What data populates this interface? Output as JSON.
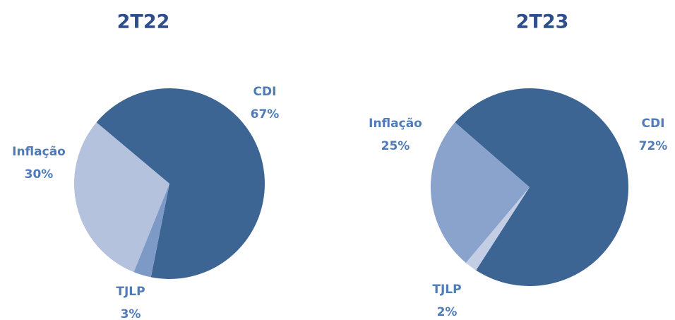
{
  "chart_data": [
    {
      "type": "pie",
      "title": "2T22",
      "categories": [
        "CDI",
        "TJLP",
        "Inflação"
      ],
      "values": [
        67,
        3,
        30
      ],
      "value_labels": [
        "67%",
        "3%",
        "30%"
      ],
      "colors": [
        "#3d6594",
        "#7d99c6",
        "#b4c2de"
      ]
    },
    {
      "type": "pie",
      "title": "2T23",
      "categories": [
        "CDI",
        "TJLP",
        "Inflação"
      ],
      "values": [
        72,
        2,
        25
      ],
      "value_labels": [
        "72%",
        "2%",
        "25%"
      ],
      "colors": [
        "#3d6594",
        "#c3cee4",
        "#89a3cc"
      ]
    }
  ]
}
